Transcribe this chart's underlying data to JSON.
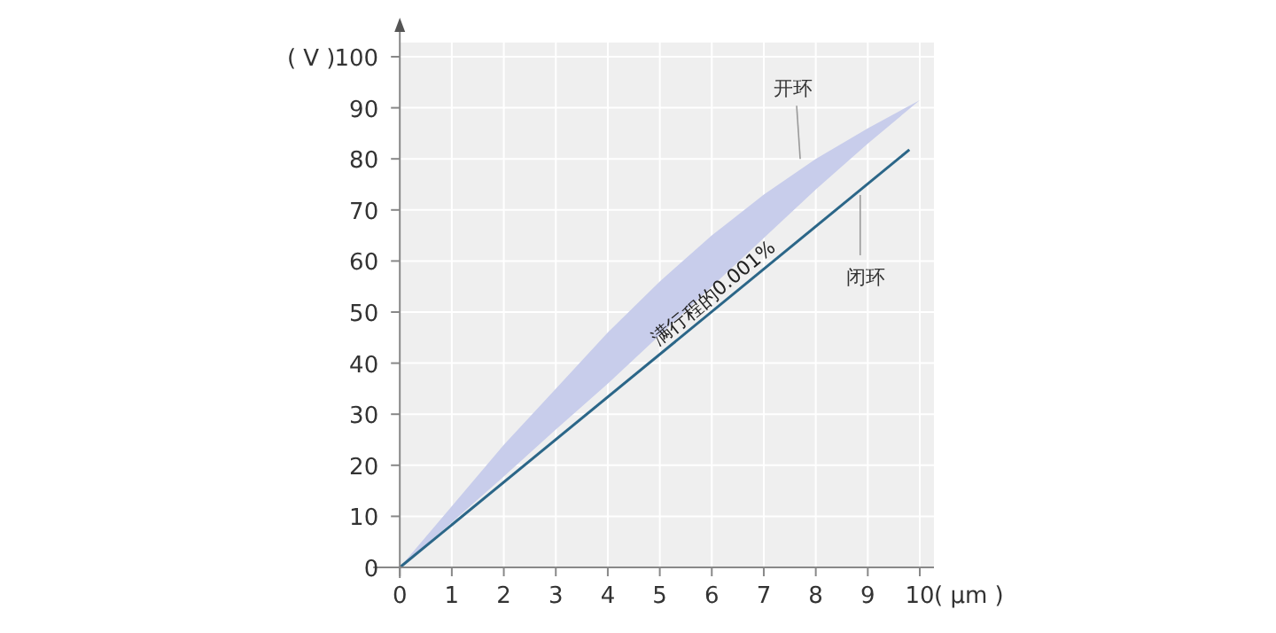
{
  "chart_data": {
    "type": "line",
    "xlabel": "( μm )",
    "ylabel": "( V )",
    "xlim": [
      0,
      10
    ],
    "ylim": [
      0,
      100
    ],
    "xticks": [
      0,
      1,
      2,
      3,
      4,
      5,
      6,
      7,
      8,
      9,
      10
    ],
    "yticks": [
      0,
      10,
      20,
      30,
      40,
      50,
      60,
      70,
      80,
      90,
      100
    ],
    "grid": true,
    "series": [
      {
        "name": "开环",
        "type": "area",
        "color": "#c8cdeb",
        "x": [
          0,
          1,
          2,
          3,
          4,
          5,
          6,
          7,
          8,
          9,
          10,
          9,
          8,
          7,
          6,
          5,
          4,
          3,
          2,
          1,
          0
        ],
        "values": [
          0,
          8.8,
          17.8,
          27,
          36,
          45.5,
          55,
          64.5,
          74,
          83,
          91.5,
          86,
          80,
          73,
          65,
          56,
          46,
          35,
          24,
          12,
          0
        ]
      },
      {
        "name": "闭环",
        "color": "#2b6688",
        "x": [
          0,
          9.8
        ],
        "values": [
          0,
          81.8
        ]
      }
    ],
    "annotations": [
      {
        "text": "满行程的0.001%",
        "x": 6.2,
        "y": 51.7
      }
    ]
  }
}
